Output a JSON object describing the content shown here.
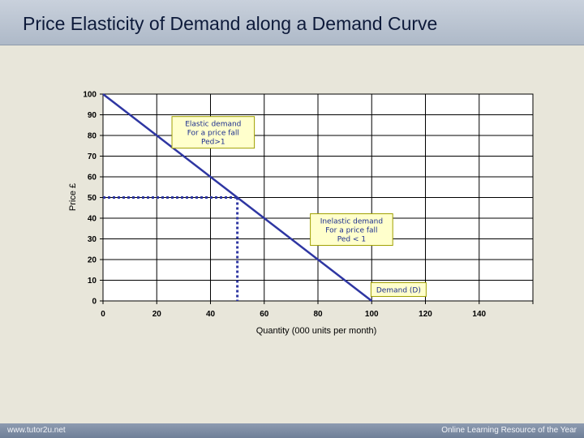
{
  "title": "Price Elasticity of Demand along a Demand Curve",
  "footer": {
    "left": "www.tutor2u.net",
    "right": "Online Learning Resource of the Year"
  },
  "colors": {
    "line": "#2e36a2",
    "box_fill": "#ffffcc",
    "box_border": "#a0a000"
  },
  "chart_data": {
    "type": "line",
    "xlabel": "Quantity (000 units per month)",
    "ylabel": "Price £",
    "xlim": [
      0,
      160
    ],
    "ylim": [
      0,
      100
    ],
    "x_ticks": [
      0,
      20,
      40,
      60,
      80,
      100,
      120,
      140
    ],
    "y_ticks": [
      0,
      10,
      20,
      30,
      40,
      50,
      60,
      70,
      80,
      90,
      100
    ],
    "grid": true,
    "series": [
      {
        "name": "Demand (D)",
        "points": [
          [
            0,
            100
          ],
          [
            100,
            0
          ]
        ]
      }
    ],
    "reference_point": {
      "x": 50,
      "y": 50,
      "style": "dotted"
    },
    "annotations": [
      {
        "lines": [
          "Elastic demand",
          "For a price fall",
          "Ped>1"
        ],
        "x": 41,
        "y": 81.5
      },
      {
        "lines": [
          "Inelastic demand",
          "For a price fall",
          "Ped < 1"
        ],
        "x": 92.5,
        "y": 34.5
      },
      {
        "lines": [
          "Demand (D)"
        ],
        "x": 110,
        "y": 5.5
      }
    ]
  }
}
